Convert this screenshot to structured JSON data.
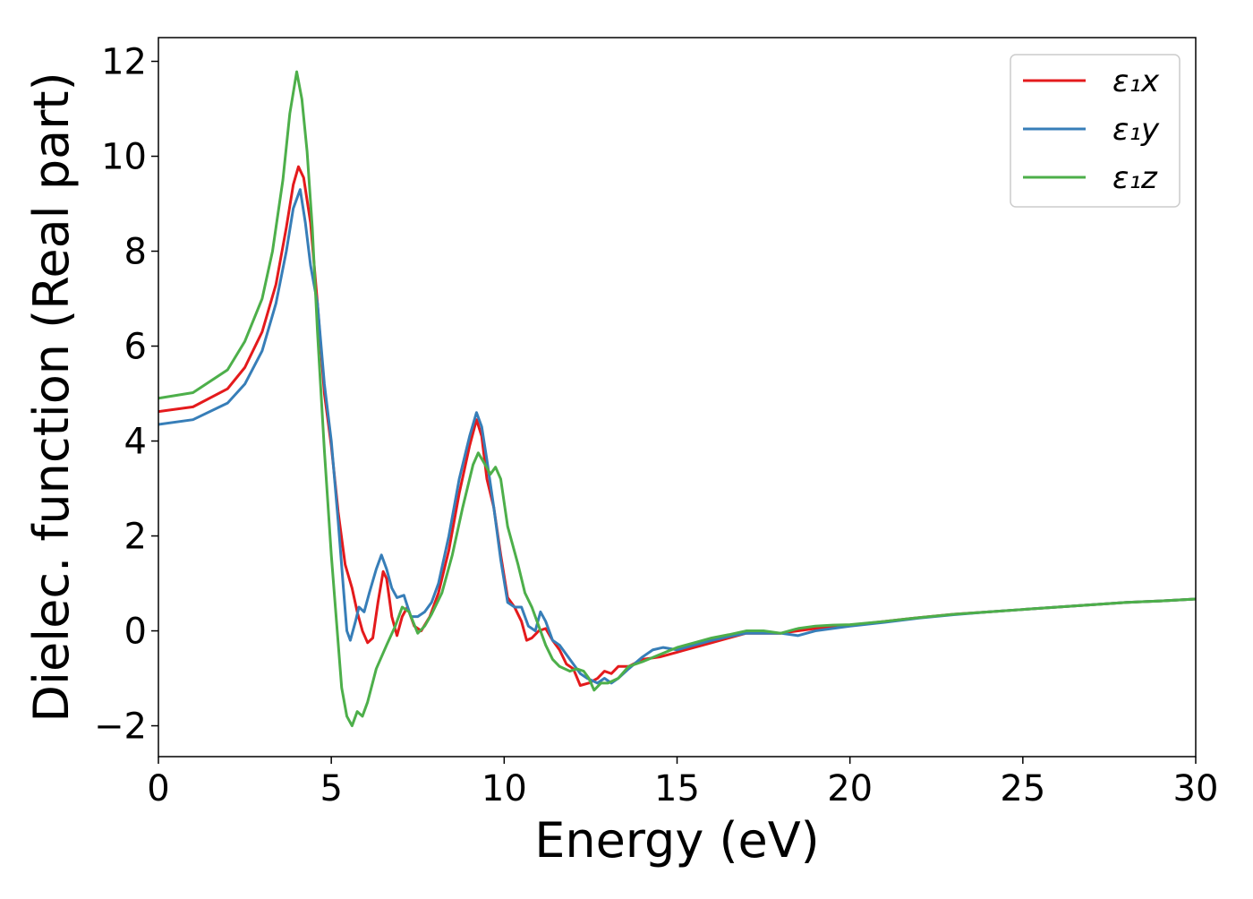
{
  "chart_data": {
    "type": "line",
    "xlabel": "Energy (eV)",
    "ylabel": "Dielec. function (Real part)",
    "xlim": [
      0,
      30
    ],
    "ylim": [
      -2.65,
      12.5
    ],
    "xticks": [
      0,
      5,
      10,
      15,
      20,
      25,
      30
    ],
    "xtick_labels": [
      "0",
      "5",
      "10",
      "15",
      "20",
      "25",
      "30"
    ],
    "yticks": [
      -2,
      0,
      2,
      4,
      6,
      8,
      10,
      12
    ],
    "ytick_labels": [
      "−2",
      "0",
      "2",
      "4",
      "6",
      "8",
      "10",
      "12"
    ],
    "grid": false,
    "legend_position": "top-right",
    "series": [
      {
        "name": "ε₁x",
        "color": "#e41a1c",
        "points": [
          [
            0,
            4.62
          ],
          [
            1,
            4.72
          ],
          [
            2,
            5.1
          ],
          [
            2.5,
            5.55
          ],
          [
            3,
            6.3
          ],
          [
            3.4,
            7.3
          ],
          [
            3.7,
            8.5
          ],
          [
            3.9,
            9.4
          ],
          [
            4.05,
            9.78
          ],
          [
            4.2,
            9.55
          ],
          [
            4.4,
            8.6
          ],
          [
            4.6,
            6.9
          ],
          [
            4.8,
            5.0
          ],
          [
            5.0,
            3.9
          ],
          [
            5.2,
            2.5
          ],
          [
            5.4,
            1.4
          ],
          [
            5.6,
            0.9
          ],
          [
            5.75,
            0.4
          ],
          [
            5.9,
            0.0
          ],
          [
            6.05,
            -0.25
          ],
          [
            6.2,
            -0.15
          ],
          [
            6.35,
            0.6
          ],
          [
            6.5,
            1.25
          ],
          [
            6.6,
            1.1
          ],
          [
            6.75,
            0.3
          ],
          [
            6.9,
            -0.1
          ],
          [
            7.05,
            0.3
          ],
          [
            7.2,
            0.5
          ],
          [
            7.4,
            0.1
          ],
          [
            7.6,
            0.0
          ],
          [
            7.85,
            0.3
          ],
          [
            8.1,
            0.8
          ],
          [
            8.4,
            1.7
          ],
          [
            8.7,
            2.9
          ],
          [
            9.0,
            3.9
          ],
          [
            9.2,
            4.45
          ],
          [
            9.35,
            4.1
          ],
          [
            9.5,
            3.2
          ],
          [
            9.7,
            2.6
          ],
          [
            9.9,
            1.6
          ],
          [
            10.1,
            0.7
          ],
          [
            10.3,
            0.5
          ],
          [
            10.5,
            0.2
          ],
          [
            10.65,
            -0.2
          ],
          [
            10.8,
            -0.15
          ],
          [
            11.0,
            0.0
          ],
          [
            11.2,
            0.05
          ],
          [
            11.4,
            -0.2
          ],
          [
            11.6,
            -0.4
          ],
          [
            11.8,
            -0.7
          ],
          [
            12.0,
            -0.8
          ],
          [
            12.2,
            -1.15
          ],
          [
            12.45,
            -1.1
          ],
          [
            12.7,
            -1.0
          ],
          [
            12.9,
            -0.85
          ],
          [
            13.1,
            -0.9
          ],
          [
            13.3,
            -0.75
          ],
          [
            13.6,
            -0.75
          ],
          [
            14.0,
            -0.6
          ],
          [
            14.5,
            -0.55
          ],
          [
            15,
            -0.45
          ],
          [
            15.5,
            -0.35
          ],
          [
            16,
            -0.25
          ],
          [
            16.5,
            -0.15
          ],
          [
            17,
            -0.05
          ],
          [
            17.5,
            -0.05
          ],
          [
            18,
            -0.05
          ],
          [
            18.5,
            0.0
          ],
          [
            19,
            0.05
          ],
          [
            19.5,
            0.1
          ],
          [
            20,
            0.12
          ],
          [
            21,
            0.2
          ],
          [
            22,
            0.28
          ],
          [
            23,
            0.35
          ],
          [
            24,
            0.4
          ],
          [
            25,
            0.45
          ],
          [
            26,
            0.5
          ],
          [
            27,
            0.55
          ],
          [
            28,
            0.6
          ],
          [
            29,
            0.63
          ],
          [
            30,
            0.67
          ]
        ]
      },
      {
        "name": "ε₁y",
        "color": "#377eb8",
        "points": [
          [
            0,
            4.35
          ],
          [
            1,
            4.45
          ],
          [
            2,
            4.8
          ],
          [
            2.5,
            5.2
          ],
          [
            3,
            5.9
          ],
          [
            3.4,
            6.9
          ],
          [
            3.7,
            8.0
          ],
          [
            3.9,
            8.9
          ],
          [
            4.1,
            9.3
          ],
          [
            4.25,
            8.6
          ],
          [
            4.4,
            7.7
          ],
          [
            4.6,
            6.9
          ],
          [
            4.8,
            5.2
          ],
          [
            5.0,
            4.0
          ],
          [
            5.2,
            2.3
          ],
          [
            5.35,
            0.9
          ],
          [
            5.45,
            0.0
          ],
          [
            5.55,
            -0.2
          ],
          [
            5.7,
            0.2
          ],
          [
            5.8,
            0.5
          ],
          [
            5.95,
            0.4
          ],
          [
            6.1,
            0.8
          ],
          [
            6.3,
            1.3
          ],
          [
            6.45,
            1.6
          ],
          [
            6.6,
            1.3
          ],
          [
            6.75,
            0.9
          ],
          [
            6.9,
            0.7
          ],
          [
            7.1,
            0.75
          ],
          [
            7.3,
            0.3
          ],
          [
            7.5,
            0.3
          ],
          [
            7.7,
            0.4
          ],
          [
            7.9,
            0.6
          ],
          [
            8.1,
            1.0
          ],
          [
            8.4,
            2.0
          ],
          [
            8.7,
            3.2
          ],
          [
            9.0,
            4.1
          ],
          [
            9.2,
            4.6
          ],
          [
            9.35,
            4.3
          ],
          [
            9.5,
            3.6
          ],
          [
            9.7,
            2.6
          ],
          [
            9.9,
            1.5
          ],
          [
            10.1,
            0.6
          ],
          [
            10.3,
            0.5
          ],
          [
            10.5,
            0.5
          ],
          [
            10.7,
            0.1
          ],
          [
            10.9,
            0.0
          ],
          [
            11.05,
            0.4
          ],
          [
            11.2,
            0.2
          ],
          [
            11.4,
            -0.2
          ],
          [
            11.6,
            -0.3
          ],
          [
            11.8,
            -0.5
          ],
          [
            12.0,
            -0.7
          ],
          [
            12.2,
            -0.9
          ],
          [
            12.4,
            -1.0
          ],
          [
            12.7,
            -1.1
          ],
          [
            12.9,
            -1.0
          ],
          [
            13.1,
            -1.1
          ],
          [
            13.3,
            -1.0
          ],
          [
            13.6,
            -0.8
          ],
          [
            14.0,
            -0.55
          ],
          [
            14.3,
            -0.4
          ],
          [
            14.6,
            -0.35
          ],
          [
            15,
            -0.4
          ],
          [
            15.5,
            -0.3
          ],
          [
            16,
            -0.2
          ],
          [
            16.5,
            -0.12
          ],
          [
            17,
            -0.05
          ],
          [
            17.5,
            -0.05
          ],
          [
            18,
            -0.05
          ],
          [
            18.5,
            -0.1
          ],
          [
            19,
            0.0
          ],
          [
            19.5,
            0.05
          ],
          [
            20,
            0.1
          ],
          [
            21,
            0.18
          ],
          [
            22,
            0.27
          ],
          [
            23,
            0.34
          ],
          [
            24,
            0.4
          ],
          [
            25,
            0.45
          ],
          [
            26,
            0.5
          ],
          [
            27,
            0.55
          ],
          [
            28,
            0.6
          ],
          [
            29,
            0.63
          ],
          [
            30,
            0.67
          ]
        ]
      },
      {
        "name": "ε₁z",
        "color": "#4daf4a",
        "points": [
          [
            0,
            4.9
          ],
          [
            1,
            5.02
          ],
          [
            2,
            5.5
          ],
          [
            2.5,
            6.1
          ],
          [
            3,
            7.0
          ],
          [
            3.3,
            8.0
          ],
          [
            3.6,
            9.5
          ],
          [
            3.8,
            10.9
          ],
          [
            4.0,
            11.78
          ],
          [
            4.15,
            11.2
          ],
          [
            4.3,
            10.1
          ],
          [
            4.45,
            8.5
          ],
          [
            4.6,
            6.3
          ],
          [
            4.8,
            3.8
          ],
          [
            5.0,
            1.6
          ],
          [
            5.15,
            0.2
          ],
          [
            5.3,
            -1.2
          ],
          [
            5.45,
            -1.8
          ],
          [
            5.6,
            -2.0
          ],
          [
            5.75,
            -1.7
          ],
          [
            5.9,
            -1.8
          ],
          [
            6.05,
            -1.5
          ],
          [
            6.3,
            -0.8
          ],
          [
            6.6,
            -0.3
          ],
          [
            6.85,
            0.1
          ],
          [
            7.05,
            0.5
          ],
          [
            7.25,
            0.4
          ],
          [
            7.5,
            -0.05
          ],
          [
            7.7,
            0.1
          ],
          [
            7.9,
            0.35
          ],
          [
            8.2,
            0.8
          ],
          [
            8.5,
            1.6
          ],
          [
            8.8,
            2.6
          ],
          [
            9.1,
            3.5
          ],
          [
            9.25,
            3.75
          ],
          [
            9.45,
            3.5
          ],
          [
            9.6,
            3.3
          ],
          [
            9.75,
            3.45
          ],
          [
            9.9,
            3.2
          ],
          [
            10.1,
            2.2
          ],
          [
            10.4,
            1.4
          ],
          [
            10.6,
            0.8
          ],
          [
            10.8,
            0.5
          ],
          [
            11.0,
            0.1
          ],
          [
            11.2,
            -0.3
          ],
          [
            11.4,
            -0.6
          ],
          [
            11.6,
            -0.75
          ],
          [
            11.9,
            -0.85
          ],
          [
            12.1,
            -0.8
          ],
          [
            12.3,
            -0.85
          ],
          [
            12.45,
            -1.0
          ],
          [
            12.6,
            -1.25
          ],
          [
            12.8,
            -1.1
          ],
          [
            13.0,
            -1.1
          ],
          [
            13.3,
            -1.0
          ],
          [
            13.6,
            -0.75
          ],
          [
            14.0,
            -0.65
          ],
          [
            14.5,
            -0.5
          ],
          [
            15,
            -0.35
          ],
          [
            15.5,
            -0.25
          ],
          [
            16,
            -0.15
          ],
          [
            16.5,
            -0.08
          ],
          [
            17,
            0.0
          ],
          [
            17.5,
            0.0
          ],
          [
            18,
            -0.05
          ],
          [
            18.5,
            0.05
          ],
          [
            19,
            0.1
          ],
          [
            19.5,
            0.12
          ],
          [
            20,
            0.13
          ],
          [
            21,
            0.2
          ],
          [
            22,
            0.28
          ],
          [
            23,
            0.35
          ],
          [
            24,
            0.4
          ],
          [
            25,
            0.45
          ],
          [
            26,
            0.5
          ],
          [
            27,
            0.55
          ],
          [
            28,
            0.6
          ],
          [
            29,
            0.63
          ],
          [
            30,
            0.67
          ]
        ]
      }
    ]
  }
}
